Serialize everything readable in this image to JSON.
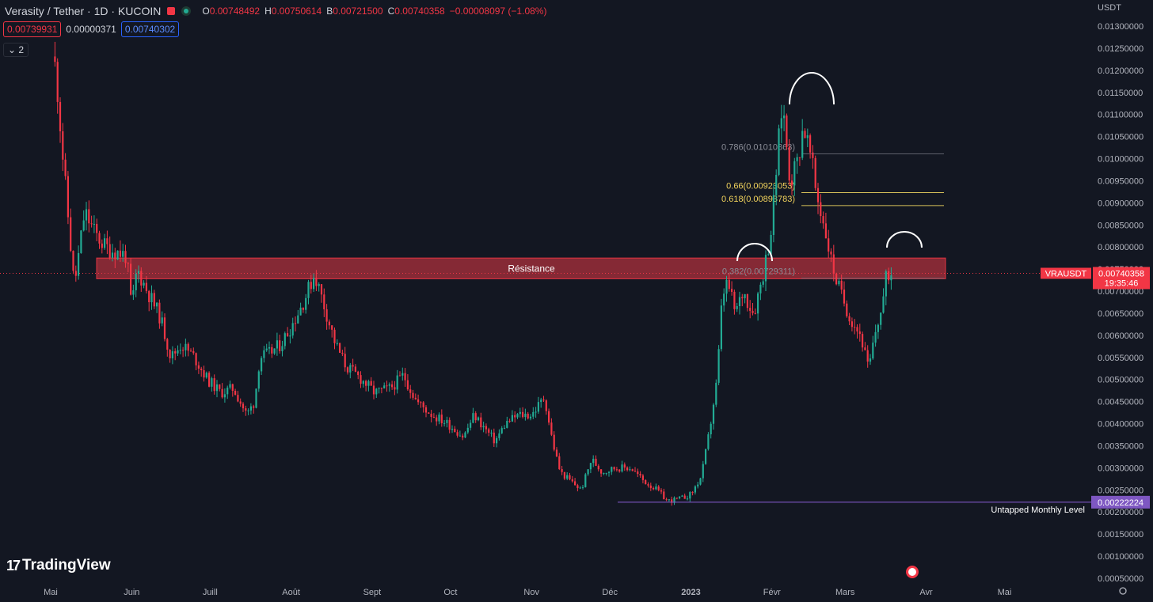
{
  "header": {
    "symbol": "Verasity / Tether · 1D · KUCOIN",
    "ohlc": [
      {
        "k": "O",
        "v": "0.00748492"
      },
      {
        "k": "H",
        "v": "0.00750614"
      },
      {
        "k": "B",
        "v": "0.00721500"
      },
      {
        "k": "C",
        "v": "0.00740358"
      }
    ],
    "change": "−0.00008097 (−1.08%)",
    "sell_price": "0.00739931",
    "spread": "0.00000371",
    "buy_price": "0.00740302",
    "collapse_label": "⌄ 2",
    "currency": "USDT"
  },
  "logo": {
    "mark": "17",
    "text": "TradingView"
  },
  "colors": {
    "background": "#131722",
    "up": "#22ab94",
    "down": "#f23645",
    "resistance": "#b2303d",
    "level": "#7e57c2",
    "fib_gold": "#f0d25c"
  },
  "chart_data": {
    "type": "candlestick",
    "symbol": "VRAUSDT",
    "ylim": [
      0.0005,
      0.0133
    ],
    "y_ticks": [
      "0.01300000",
      "0.01250000",
      "0.01200000",
      "0.01150000",
      "0.01100000",
      "0.01050000",
      "0.01000000",
      "0.00950000",
      "0.00900000",
      "0.00850000",
      "0.00800000",
      "0.00750000",
      "0.00700000",
      "0.00650000",
      "0.00600000",
      "0.00550000",
      "0.00500000",
      "0.00450000",
      "0.00400000",
      "0.00350000",
      "0.00300000",
      "0.00250000",
      "0.00200000",
      "0.00150000",
      "0.00100000",
      "0.00050000"
    ],
    "x_ticks": [
      "Mai",
      "Juin",
      "Juill",
      "Août",
      "Sept",
      "Oct",
      "Nov",
      "Déc",
      "2023",
      "Févr",
      "Mars",
      "Avr",
      "Mai"
    ],
    "close_path": [
      {
        "date": "2022-04-29",
        "price": 0.013
      },
      {
        "date": "2022-05-03",
        "price": 0.012
      },
      {
        "date": "2022-05-06",
        "price": 0.0098
      },
      {
        "date": "2022-05-10",
        "price": 0.0071
      },
      {
        "date": "2022-05-14",
        "price": 0.0088
      },
      {
        "date": "2022-05-18",
        "price": 0.0083
      },
      {
        "date": "2022-05-22",
        "price": 0.008
      },
      {
        "date": "2022-05-26",
        "price": 0.0079
      },
      {
        "date": "2022-05-30",
        "price": 0.0078
      },
      {
        "date": "2022-06-01",
        "price": 0.0066
      },
      {
        "date": "2022-06-03",
        "price": 0.0075
      },
      {
        "date": "2022-06-07",
        "price": 0.007
      },
      {
        "date": "2022-06-12",
        "price": 0.0064
      },
      {
        "date": "2022-06-16",
        "price": 0.0055
      },
      {
        "date": "2022-06-20",
        "price": 0.0058
      },
      {
        "date": "2022-06-25",
        "price": 0.0055
      },
      {
        "date": "2022-06-30",
        "price": 0.005
      },
      {
        "date": "2022-07-05",
        "price": 0.0047
      },
      {
        "date": "2022-07-10",
        "price": 0.0048
      },
      {
        "date": "2022-07-15",
        "price": 0.0042
      },
      {
        "date": "2022-07-18",
        "price": 0.0045
      },
      {
        "date": "2022-07-20",
        "price": 0.0055
      },
      {
        "date": "2022-07-24",
        "price": 0.0056
      },
      {
        "date": "2022-07-28",
        "price": 0.0058
      },
      {
        "date": "2022-08-01",
        "price": 0.0062
      },
      {
        "date": "2022-08-06",
        "price": 0.0068
      },
      {
        "date": "2022-08-10",
        "price": 0.0074
      },
      {
        "date": "2022-08-13",
        "price": 0.0068
      },
      {
        "date": "2022-08-18",
        "price": 0.0058
      },
      {
        "date": "2022-08-22",
        "price": 0.0053
      },
      {
        "date": "2022-08-28",
        "price": 0.005
      },
      {
        "date": "2022-09-02",
        "price": 0.0047
      },
      {
        "date": "2022-09-08",
        "price": 0.0048
      },
      {
        "date": "2022-09-13",
        "price": 0.0051
      },
      {
        "date": "2022-09-18",
        "price": 0.0045
      },
      {
        "date": "2022-09-24",
        "price": 0.0042
      },
      {
        "date": "2022-09-30",
        "price": 0.004
      },
      {
        "date": "2022-10-06",
        "price": 0.0037
      },
      {
        "date": "2022-10-10",
        "price": 0.0042
      },
      {
        "date": "2022-10-14",
        "price": 0.0039
      },
      {
        "date": "2022-10-18",
        "price": 0.0036
      },
      {
        "date": "2022-10-22",
        "price": 0.004
      },
      {
        "date": "2022-10-27",
        "price": 0.0042
      },
      {
        "date": "2022-11-01",
        "price": 0.0042
      },
      {
        "date": "2022-11-06",
        "price": 0.0046
      },
      {
        "date": "2022-11-09",
        "price": 0.0036
      },
      {
        "date": "2022-11-12",
        "price": 0.0029
      },
      {
        "date": "2022-11-16",
        "price": 0.0027
      },
      {
        "date": "2022-11-20",
        "price": 0.0025
      },
      {
        "date": "2022-11-24",
        "price": 0.0032
      },
      {
        "date": "2022-11-28",
        "price": 0.0029
      },
      {
        "date": "2022-12-03",
        "price": 0.003
      },
      {
        "date": "2022-12-09",
        "price": 0.003
      },
      {
        "date": "2022-12-14",
        "price": 0.0027
      },
      {
        "date": "2022-12-19",
        "price": 0.0025
      },
      {
        "date": "2022-12-23",
        "price": 0.00225
      },
      {
        "date": "2022-12-28",
        "price": 0.0023
      },
      {
        "date": "2023-01-01",
        "price": 0.0024
      },
      {
        "date": "2023-01-05",
        "price": 0.0028
      },
      {
        "date": "2023-01-08",
        "price": 0.0038
      },
      {
        "date": "2023-01-11",
        "price": 0.005
      },
      {
        "date": "2023-01-13",
        "price": 0.0069
      },
      {
        "date": "2023-01-15",
        "price": 0.0072
      },
      {
        "date": "2023-01-18",
        "price": 0.0065
      },
      {
        "date": "2023-01-21",
        "price": 0.007
      },
      {
        "date": "2023-01-25",
        "price": 0.0065
      },
      {
        "date": "2023-01-29",
        "price": 0.0075
      },
      {
        "date": "2023-02-01",
        "price": 0.0085
      },
      {
        "date": "2023-02-03",
        "price": 0.01
      },
      {
        "date": "2023-02-05",
        "price": 0.0113
      },
      {
        "date": "2023-02-08",
        "price": 0.0095
      },
      {
        "date": "2023-02-11",
        "price": 0.01
      },
      {
        "date": "2023-02-13",
        "price": 0.0108
      },
      {
        "date": "2023-02-16",
        "price": 0.01
      },
      {
        "date": "2023-02-18",
        "price": 0.0092
      },
      {
        "date": "2023-02-21",
        "price": 0.0085
      },
      {
        "date": "2023-02-24",
        "price": 0.0076
      },
      {
        "date": "2023-02-27",
        "price": 0.007
      },
      {
        "date": "2023-03-03",
        "price": 0.0064
      },
      {
        "date": "2023-03-07",
        "price": 0.006
      },
      {
        "date": "2023-03-10",
        "price": 0.0052
      },
      {
        "date": "2023-03-13",
        "price": 0.0062
      },
      {
        "date": "2023-03-15",
        "price": 0.0066
      },
      {
        "date": "2023-03-17",
        "price": 0.0074
      },
      {
        "date": "2023-03-19",
        "price": 0.0074
      }
    ],
    "resistance_zone": {
      "label": "Résistance",
      "y_low": 0.00728,
      "y_high": 0.00775
    },
    "fib_levels": [
      {
        "label": "0.786(0.01010863)",
        "price": 0.01010863,
        "color": "#8a8d97"
      },
      {
        "label": "0.66(0.00923053)",
        "price": 0.00923053,
        "color": "#f0d25c"
      },
      {
        "label": "0.618(0.00893783)",
        "price": 0.00893783,
        "color": "#f0d25c"
      },
      {
        "label": "0.382(0.00729311)",
        "price": 0.00729311,
        "color": "#8a8d97"
      }
    ],
    "untapped_level": {
      "label": "Untapped Monthly Level",
      "price": 0.00222224,
      "price_label": "0.00222224"
    },
    "current_price": {
      "symbol": "VRAUSDT",
      "price": 0.00740358,
      "price_label": "0.00740358",
      "countdown": "19:35:46"
    },
    "grid": false
  }
}
